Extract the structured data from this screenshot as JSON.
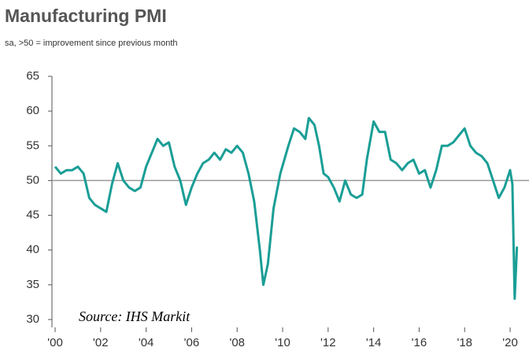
{
  "chart_data": {
    "type": "line",
    "title": "Manufacturing PMI",
    "subtitle": "sa, >50 = improvement since previous month",
    "annotation": "Source: IHS Markit",
    "reference_line": 50,
    "xlim": [
      1999.85,
      2020.4
    ],
    "xticks": [
      {
        "value": 2000,
        "label": "'00"
      },
      {
        "value": 2002,
        "label": "'02"
      },
      {
        "value": 2004,
        "label": "'04"
      },
      {
        "value": 2006,
        "label": "'06"
      },
      {
        "value": 2008,
        "label": "'08"
      },
      {
        "value": 2010,
        "label": "'10"
      },
      {
        "value": 2012,
        "label": "'12"
      },
      {
        "value": 2014,
        "label": "'14"
      },
      {
        "value": 2016,
        "label": "'16"
      },
      {
        "value": 2018,
        "label": "'18"
      },
      {
        "value": 2020,
        "label": "'20"
      }
    ],
    "ylim": [
      30,
      65
    ],
    "yticks": [
      30,
      35,
      40,
      45,
      50,
      55,
      60,
      65
    ],
    "x": [
      2000.0,
      2000.25,
      2000.5,
      2000.75,
      2001.0,
      2001.25,
      2001.5,
      2001.75,
      2002.0,
      2002.25,
      2002.5,
      2002.75,
      2003.0,
      2003.25,
      2003.5,
      2003.75,
      2004.0,
      2004.25,
      2004.5,
      2004.75,
      2005.0,
      2005.25,
      2005.5,
      2005.75,
      2006.0,
      2006.25,
      2006.5,
      2006.75,
      2007.0,
      2007.25,
      2007.5,
      2007.75,
      2008.0,
      2008.25,
      2008.5,
      2008.75,
      2009.0,
      2009.15,
      2009.35,
      2009.6,
      2009.9,
      2010.25,
      2010.5,
      2010.75,
      2011.0,
      2011.15,
      2011.4,
      2011.6,
      2011.8,
      2012.0,
      2012.25,
      2012.5,
      2012.75,
      2013.0,
      2013.25,
      2013.5,
      2013.7,
      2014.0,
      2014.25,
      2014.5,
      2014.75,
      2015.0,
      2015.25,
      2015.5,
      2015.75,
      2016.0,
      2016.25,
      2016.5,
      2016.75,
      2017.0,
      2017.25,
      2017.5,
      2017.75,
      2018.0,
      2018.25,
      2018.5,
      2018.75,
      2019.0,
      2019.25,
      2019.5,
      2019.75,
      2020.0,
      2020.1,
      2020.2,
      2020.3
    ],
    "series": [
      {
        "name": "Manufacturing PMI",
        "color": "#1a9e96",
        "values": [
          52,
          51,
          51.5,
          51.5,
          52,
          51,
          47.5,
          46.5,
          46,
          45.5,
          49.5,
          52.5,
          50,
          49,
          48.5,
          49,
          52,
          54,
          56,
          55,
          55.5,
          52,
          50,
          46.5,
          49,
          51,
          52.5,
          53,
          54,
          53,
          54.5,
          54,
          55,
          54,
          51,
          47,
          40,
          35,
          38,
          46,
          51,
          55,
          57.5,
          57,
          56,
          59,
          58,
          55,
          51,
          50.5,
          49,
          47,
          50,
          48,
          47.5,
          48,
          53,
          58.5,
          57,
          57,
          53,
          52.5,
          51.5,
          52.5,
          53,
          51,
          51.5,
          49,
          51.5,
          55,
          55,
          55.5,
          56.5,
          57.5,
          55,
          54,
          53.5,
          52.5,
          50,
          47.5,
          49,
          51.5,
          49.5,
          33,
          40.5
        ]
      }
    ]
  }
}
